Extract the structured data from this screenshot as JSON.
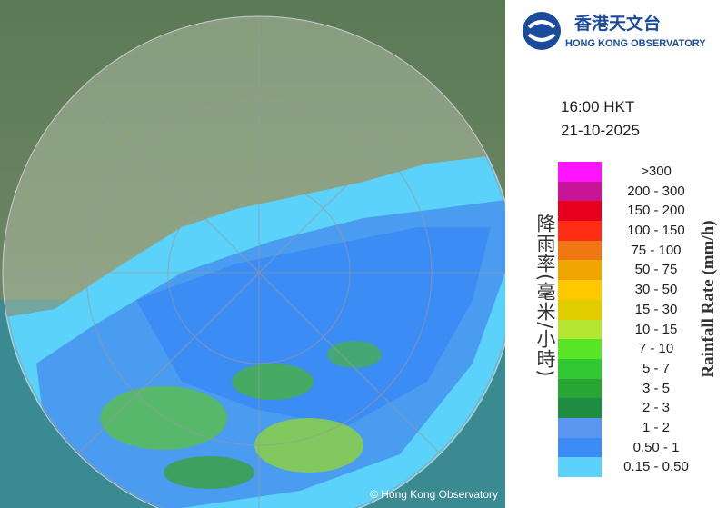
{
  "header": {
    "logo_chinese": "香港天文台",
    "logo_english": "HONG KONG OBSERVATORY",
    "time": "16:00 HKT",
    "date": "21-10-2025"
  },
  "map": {
    "copyright": "© Hong Kong Observatory"
  },
  "legend": {
    "title_chinese": "降雨率(毫米/小時)",
    "title_english": "Rainfall Rate (mm/h)",
    "items": [
      {
        "label": ">300",
        "color": "#ff14ff"
      },
      {
        "label": "200 - 300",
        "color": "#c81496"
      },
      {
        "label": "150 - 200",
        "color": "#e6001e"
      },
      {
        "label": "100 - 150",
        "color": "#ff2d14"
      },
      {
        "label": "75 - 100",
        "color": "#f07814"
      },
      {
        "label": "50 - 75",
        "color": "#f0a500"
      },
      {
        "label": "30 - 50",
        "color": "#ffc800"
      },
      {
        "label": "15 - 30",
        "color": "#e1cd00"
      },
      {
        "label": "10 - 15",
        "color": "#b4e632"
      },
      {
        "label": "7 - 10",
        "color": "#5ae628"
      },
      {
        "label": "5 - 7",
        "color": "#32c832"
      },
      {
        "label": "3 - 5",
        "color": "#28a532"
      },
      {
        "label": "2 - 3",
        "color": "#1e8c41"
      },
      {
        "label": "1 - 2",
        "color": "#5a96f0"
      },
      {
        "label": "0.50 - 1",
        "color": "#3c8cf5"
      },
      {
        "label": "0.15 - 0.50",
        "color": "#5ad2fa"
      }
    ]
  }
}
